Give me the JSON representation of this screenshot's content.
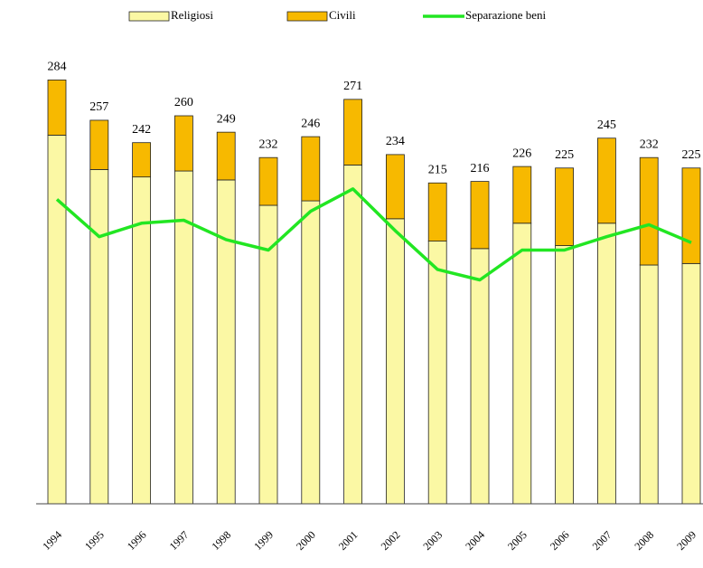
{
  "chart_data": {
    "type": "stacked_bar_line",
    "categories": [
      "1994",
      "1995",
      "1996",
      "1997",
      "1998",
      "1999",
      "2000",
      "2001",
      "2002",
      "2003",
      "2004",
      "2005",
      "2006",
      "2007",
      "2008",
      "2009"
    ],
    "series": [
      {
        "name": "Religiosi",
        "color": "#fbf8a4",
        "values": [
          247,
          224,
          219,
          223,
          217,
          200,
          203,
          227,
          191,
          176,
          171,
          188,
          173,
          188,
          160,
          161
        ]
      },
      {
        "name": "Civili",
        "color": "#f7b900",
        "values": [
          37,
          33,
          23,
          37,
          32,
          32,
          43,
          44,
          43,
          39,
          45,
          38,
          52,
          57,
          72,
          64
        ]
      },
      {
        "name": "Separazione beni",
        "color": "#22e622",
        "type": "line",
        "values": [
          204,
          179,
          188,
          190,
          177,
          170,
          196,
          211,
          183,
          157,
          150,
          170,
          170,
          179,
          187,
          175
        ]
      }
    ],
    "total_labels": [
      284,
      257,
      242,
      260,
      249,
      232,
      246,
      271,
      234,
      215,
      216,
      226,
      225,
      245,
      232,
      225
    ],
    "ylim": [
      0,
      300
    ]
  }
}
